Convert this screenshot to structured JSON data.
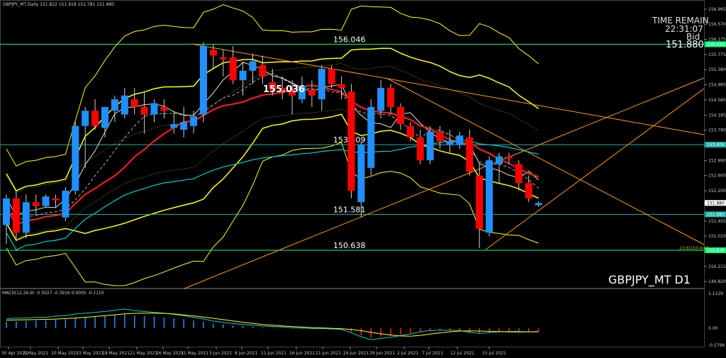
{
  "header": {
    "symbol_info": "GBPJPY_MT,Daily  151.822 151.918 151.781 151.880",
    "time_remain_label": "TIME REMAIN",
    "time_remain_value": "22:31:07",
    "bid_label": "Bid",
    "bid_value": "151.880",
    "symbol_title": "GBPJPY_MT D1"
  },
  "macd": {
    "label": "MACD(12,26,9) -0.5027 -0.3916 0.0000 -0.1110"
  },
  "annotations": {
    "price_label_big": "155.036",
    "fib_label": "23.6(150.640)"
  },
  "colors": {
    "background": "#000000",
    "bull": "#1e90ff",
    "bear": "#ff0000",
    "hline": "#00ff7f",
    "hline_cyan": "#20b2aa",
    "yellow": "#ffff00",
    "red_ma": "#ff2020",
    "cyan_ma": "#00ced1",
    "white_ma": "#e0e0e0",
    "trend": "#ff9900"
  },
  "chart_data": {
    "type": "candlestick",
    "symbol": "GBPJPY_MT",
    "timeframe": "D1",
    "price_axis_ticks": [
      "156.965",
      "156.570",
      "156.175",
      "155.775",
      "155.380",
      "154.985",
      "154.585",
      "154.185",
      "153.790",
      "153.400",
      "152.990",
      "152.600",
      "152.200",
      "151.880",
      "151.405",
      "151.010",
      "150.638",
      "150.215",
      "149.820"
    ],
    "price_axis_markers": [
      "156.046",
      "153.409",
      "151.581",
      "150.638",
      "151.880"
    ],
    "macd_axis_ticks": [
      "1.1129",
      "0.00",
      "-0.5796"
    ],
    "x_axis_labels": [
      "30 Apr 2021",
      "5 May 2021",
      "10 May 2021",
      "13 May 2021",
      "18 May 2021",
      "21 May 2021",
      "26 May 2021",
      "31 May 2021",
      "3 Jun 2021",
      "8 Jun 2021",
      "11 Jun 2021",
      "16 Jun 2021",
      "21 Jun 2021",
      "24 Jun 2021",
      "29 Jun 2021",
      "2 Jul 2021",
      "7 Jul 2021",
      "12 Jul 2021",
      "15 Jul 2021"
    ],
    "horizontal_lines": [
      {
        "price": 156.046,
        "label": "156.046"
      },
      {
        "price": 153.409,
        "label": "153.409"
      },
      {
        "price": 151.581,
        "label": "151.581"
      },
      {
        "price": 150.638,
        "label": "150.638"
      }
    ],
    "candles": [
      {
        "o": 151.3,
        "h": 152.1,
        "l": 150.8,
        "c": 152.0
      },
      {
        "o": 152.0,
        "h": 152.2,
        "l": 150.9,
        "c": 151.1
      },
      {
        "o": 151.1,
        "h": 152.1,
        "l": 150.95,
        "c": 151.9
      },
      {
        "o": 151.9,
        "h": 152.1,
        "l": 151.6,
        "c": 151.8
      },
      {
        "o": 151.8,
        "h": 152.1,
        "l": 151.75,
        "c": 152.05
      },
      {
        "o": 152.0,
        "h": 152.1,
        "l": 151.75,
        "c": 151.95
      },
      {
        "o": 151.5,
        "h": 152.3,
        "l": 151.4,
        "c": 152.2
      },
      {
        "o": 152.2,
        "h": 154.0,
        "l": 152.1,
        "c": 153.9
      },
      {
        "o": 153.9,
        "h": 154.4,
        "l": 152.8,
        "c": 154.3
      },
      {
        "o": 154.3,
        "h": 154.6,
        "l": 153.8,
        "c": 153.9
      },
      {
        "o": 153.85,
        "h": 154.4,
        "l": 153.6,
        "c": 154.4
      },
      {
        "o": 154.3,
        "h": 154.7,
        "l": 154.0,
        "c": 154.6
      },
      {
        "o": 154.2,
        "h": 154.9,
        "l": 154.1,
        "c": 154.7
      },
      {
        "o": 154.6,
        "h": 154.9,
        "l": 154.2,
        "c": 154.4
      },
      {
        "o": 154.4,
        "h": 154.8,
        "l": 153.7,
        "c": 154.2
      },
      {
        "o": 154.2,
        "h": 154.6,
        "l": 154.0,
        "c": 154.5
      },
      {
        "o": 154.4,
        "h": 154.6,
        "l": 154.1,
        "c": 154.3
      },
      {
        "o": 153.85,
        "h": 154.3,
        "l": 153.7,
        "c": 153.95
      },
      {
        "o": 153.8,
        "h": 154.4,
        "l": 153.6,
        "c": 154.0
      },
      {
        "o": 153.9,
        "h": 154.3,
        "l": 153.7,
        "c": 154.15
      },
      {
        "o": 154.2,
        "h": 156.1,
        "l": 154.0,
        "c": 156.0
      },
      {
        "o": 155.9,
        "h": 156.05,
        "l": 155.4,
        "c": 155.75
      },
      {
        "o": 155.7,
        "h": 155.9,
        "l": 155.2,
        "c": 155.65
      },
      {
        "o": 155.7,
        "h": 156.0,
        "l": 155.0,
        "c": 155.1
      },
      {
        "o": 155.1,
        "h": 155.6,
        "l": 154.7,
        "c": 155.35
      },
      {
        "o": 155.35,
        "h": 155.8,
        "l": 155.0,
        "c": 155.6
      },
      {
        "o": 155.5,
        "h": 155.75,
        "l": 155.0,
        "c": 155.2
      },
      {
        "o": 155.05,
        "h": 155.4,
        "l": 154.7,
        "c": 154.85
      },
      {
        "o": 154.9,
        "h": 155.2,
        "l": 154.6,
        "c": 154.8
      },
      {
        "o": 154.8,
        "h": 155.1,
        "l": 154.2,
        "c": 154.7
      },
      {
        "o": 154.6,
        "h": 155.2,
        "l": 154.5,
        "c": 154.95
      },
      {
        "o": 154.85,
        "h": 155.1,
        "l": 154.4,
        "c": 154.7
      },
      {
        "o": 154.6,
        "h": 155.5,
        "l": 154.3,
        "c": 155.4
      },
      {
        "o": 155.4,
        "h": 155.5,
        "l": 154.9,
        "c": 155.0
      },
      {
        "o": 155.0,
        "h": 155.2,
        "l": 154.6,
        "c": 154.9
      },
      {
        "o": 154.8,
        "h": 155.0,
        "l": 152.0,
        "c": 152.2
      },
      {
        "o": 151.9,
        "h": 153.5,
        "l": 151.5,
        "c": 153.4
      },
      {
        "o": 152.8,
        "h": 154.6,
        "l": 152.6,
        "c": 154.4
      },
      {
        "o": 154.3,
        "h": 155.1,
        "l": 154.1,
        "c": 154.9
      },
      {
        "o": 154.9,
        "h": 155.0,
        "l": 154.2,
        "c": 154.4
      },
      {
        "o": 154.4,
        "h": 154.5,
        "l": 153.8,
        "c": 153.95
      },
      {
        "o": 153.9,
        "h": 154.0,
        "l": 153.5,
        "c": 153.6
      },
      {
        "o": 153.6,
        "h": 153.8,
        "l": 152.9,
        "c": 153.0
      },
      {
        "o": 153.0,
        "h": 153.9,
        "l": 152.9,
        "c": 153.75
      },
      {
        "o": 153.75,
        "h": 153.9,
        "l": 153.3,
        "c": 153.5
      },
      {
        "o": 153.4,
        "h": 153.8,
        "l": 153.2,
        "c": 153.5
      },
      {
        "o": 153.4,
        "h": 153.75,
        "l": 153.3,
        "c": 153.65
      },
      {
        "o": 153.6,
        "h": 153.8,
        "l": 152.6,
        "c": 152.7
      },
      {
        "o": 152.6,
        "h": 152.9,
        "l": 150.7,
        "c": 151.2
      },
      {
        "o": 151.1,
        "h": 153.1,
        "l": 151.0,
        "c": 153.0
      },
      {
        "o": 152.9,
        "h": 153.2,
        "l": 152.4,
        "c": 153.1
      },
      {
        "o": 153.1,
        "h": 153.2,
        "l": 152.9,
        "c": 153.05
      },
      {
        "o": 152.9,
        "h": 153.0,
        "l": 152.2,
        "c": 152.4
      },
      {
        "o": 152.4,
        "h": 152.6,
        "l": 151.9,
        "c": 152.0
      },
      {
        "o": 151.82,
        "h": 151.92,
        "l": 151.78,
        "c": 151.88
      }
    ],
    "macd_histogram": [
      0.2,
      0.22,
      0.22,
      0.24,
      0.24,
      0.27,
      0.28,
      0.32,
      0.34,
      0.36,
      0.38,
      0.41,
      0.44,
      0.4,
      0.38,
      0.36,
      0.34,
      0.31,
      0.28,
      0.24,
      0.2,
      0.15,
      0.12,
      0.09,
      0.07,
      0.05,
      0.03,
      0.02,
      0.01,
      -0.01,
      -0.02,
      -0.03,
      -0.03,
      -0.04,
      -0.05,
      -0.13,
      -0.23,
      -0.3,
      -0.27,
      -0.24,
      -0.2,
      -0.16,
      -0.11,
      -0.08,
      -0.07,
      -0.07,
      -0.08,
      -0.12,
      -0.15,
      -0.13,
      -0.11,
      -0.1,
      -0.1,
      -0.11,
      -0.11
    ],
    "macd_signal_range": [
      -0.5796,
      1.1129
    ]
  }
}
